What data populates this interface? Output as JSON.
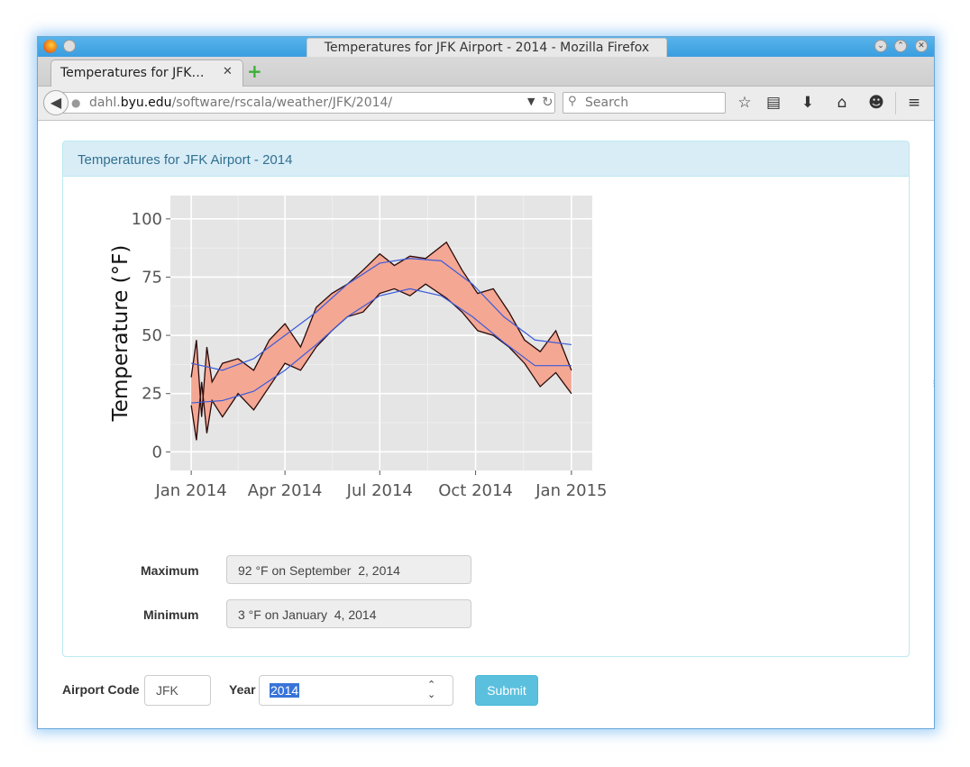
{
  "window": {
    "title": "Temperatures for JFK Airport - 2014 - Mozilla Firefox"
  },
  "tabs": [
    {
      "label": "Temperatures for JFK…",
      "close": "✕"
    }
  ],
  "navbar": {
    "url_host_prefix": "dahl.",
    "url_host_main": "byu.edu",
    "url_path": "/software/rscala/weather/JFK/2014/",
    "search_placeholder": "Search"
  },
  "panel": {
    "title": "Temperatures for JFK Airport - 2014"
  },
  "stats": {
    "maximum_label": "Maximum",
    "maximum_value": "92 °F on September  2, 2014",
    "minimum_label": "Minimum",
    "minimum_value": "3 °F on January  4, 2014"
  },
  "form": {
    "airport_label": "Airport Code",
    "airport_value": "JFK",
    "year_label": "Year",
    "year_value": "2014",
    "submit_label": "Submit"
  },
  "chart_data": {
    "type": "area",
    "title": "",
    "xlabel": "",
    "ylabel": "Temperature (°F)",
    "ylim": [
      -8,
      110
    ],
    "yticks": [
      0,
      25,
      50,
      75,
      100
    ],
    "xtick_labels": [
      "Jan 2014",
      "Apr 2014",
      "Jul 2014",
      "Oct 2014",
      "Jan 2015"
    ],
    "xtick_days": [
      0,
      90,
      181,
      273,
      365
    ],
    "grid": true,
    "colors": {
      "panel_bg": "#e5e5e5",
      "grid": "#ffffff",
      "band_fill": "#f4a793",
      "band_line": "#2a0a0a",
      "smooth_line": "#3b5bdb"
    },
    "series": [
      {
        "values_day": [
          0,
          5,
          10,
          15,
          20,
          30,
          45,
          60,
          75,
          90,
          105,
          120,
          135,
          150,
          165,
          181,
          195,
          210,
          225,
          245,
          260,
          275,
          290,
          305,
          320,
          335,
          350,
          365
        ],
        "values": [
          32,
          48,
          15,
          45,
          30,
          38,
          40,
          35,
          48,
          55,
          45,
          62,
          68,
          72,
          78,
          85,
          80,
          84,
          83,
          90,
          78,
          68,
          70,
          60,
          48,
          43,
          52,
          35
        ]
      },
      {
        "values_day": [
          0,
          5,
          10,
          15,
          20,
          30,
          45,
          60,
          75,
          90,
          105,
          120,
          135,
          150,
          165,
          181,
          195,
          210,
          225,
          245,
          260,
          275,
          290,
          305,
          320,
          335,
          350,
          365
        ],
        "values": [
          20,
          5,
          30,
          8,
          22,
          15,
          25,
          18,
          28,
          38,
          35,
          45,
          52,
          58,
          60,
          68,
          70,
          67,
          72,
          66,
          60,
          52,
          50,
          45,
          38,
          28,
          34,
          25
        ]
      },
      {
        "values_day": [
          0,
          30,
          60,
          90,
          120,
          150,
          181,
          210,
          240,
          270,
          300,
          330,
          365
        ],
        "values": [
          38,
          35,
          40,
          50,
          60,
          72,
          81,
          83,
          82,
          72,
          58,
          48,
          46
        ]
      },
      {
        "values_day": [
          0,
          30,
          60,
          90,
          120,
          150,
          181,
          210,
          240,
          270,
          300,
          330,
          365
        ],
        "values": [
          21,
          22,
          26,
          35,
          46,
          58,
          67,
          70,
          67,
          58,
          47,
          37,
          37
        ]
      }
    ]
  }
}
